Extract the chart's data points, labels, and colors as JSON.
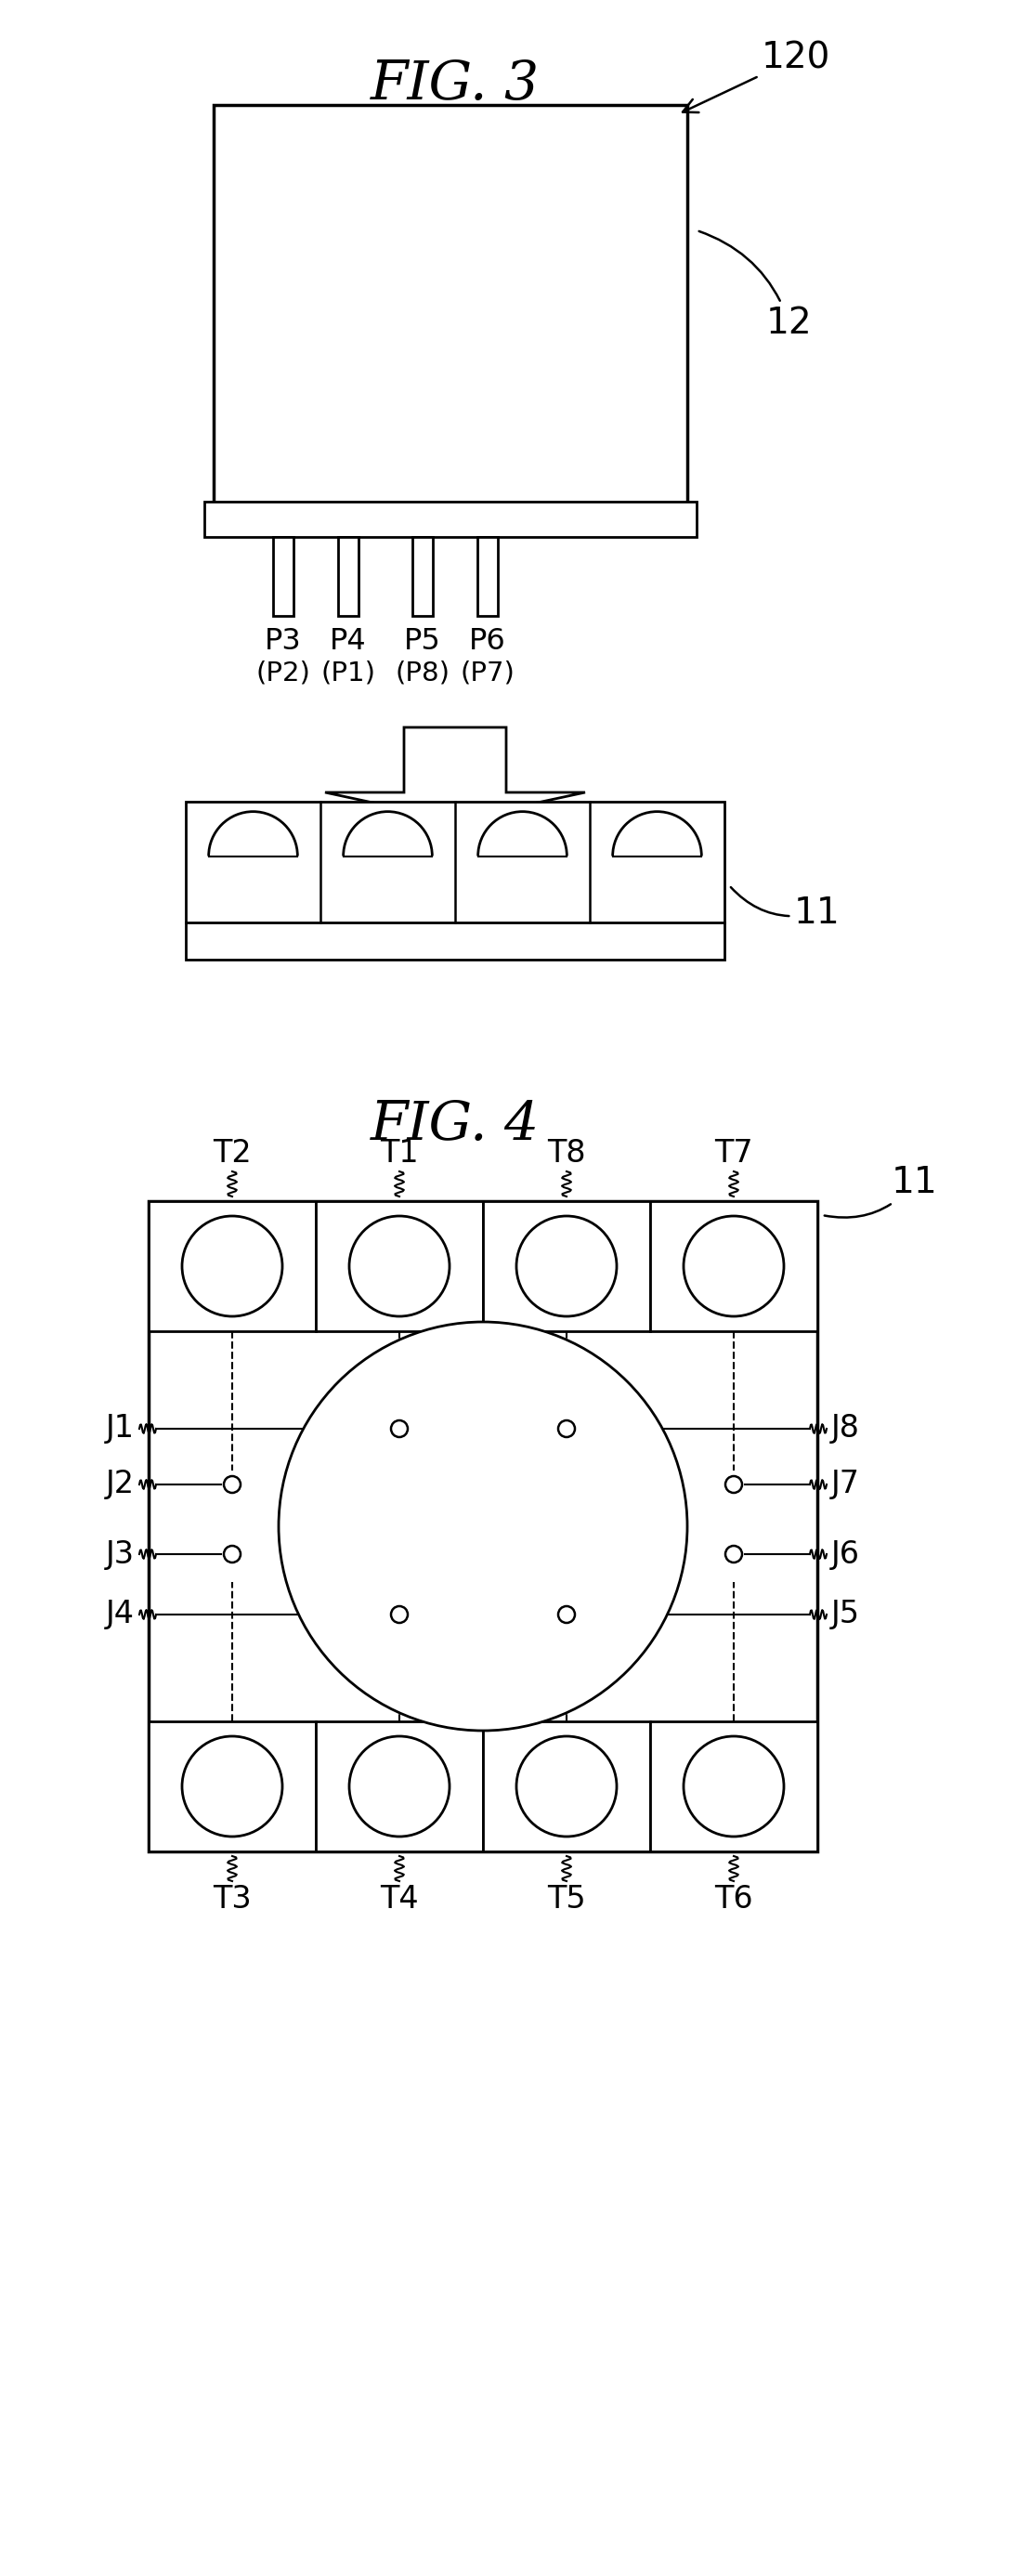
{
  "fig_width": 11.09,
  "fig_height": 27.73,
  "bg_color": "#ffffff",
  "line_color": "#000000",
  "fig3_title": "FIG. 3",
  "fig4_title": "FIG. 4",
  "label_120": "120",
  "label_12": "12",
  "label_11": "11",
  "pin_texts_top": [
    "P3",
    "P4",
    "P5",
    "P6"
  ],
  "pin_texts_bot": [
    "(P2)",
    "(P1)",
    "(P8)",
    "(P7)"
  ],
  "top_terminals": [
    "T2",
    "T1",
    "T8",
    "T7"
  ],
  "bottom_terminals": [
    "T3",
    "T4",
    "T5",
    "T6"
  ],
  "left_labels": [
    "J1",
    "J2",
    "J3",
    "J4"
  ],
  "right_labels": [
    "J8",
    "J7",
    "J6",
    "J5"
  ]
}
